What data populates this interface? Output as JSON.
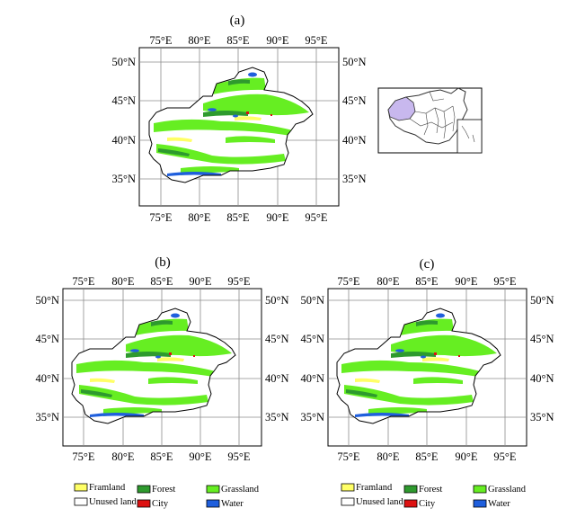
{
  "figure": {
    "panels": [
      {
        "label": "(a)",
        "lon_ticks": [
          "75°E",
          "80°E",
          "85°E",
          "90°E",
          "95°E"
        ],
        "lat_ticks": [
          "50°N",
          "45°N",
          "40°N",
          "35°N"
        ]
      },
      {
        "label": "(b)",
        "lon_ticks": [
          "75°E",
          "80°E",
          "85°E",
          "90°E",
          "95°E"
        ],
        "lat_ticks": [
          "50°N",
          "45°N",
          "40°N",
          "35°N"
        ]
      },
      {
        "label": "(c)",
        "lon_ticks": [
          "75°E",
          "80°E",
          "85°E",
          "90°E",
          "95°E"
        ],
        "lat_ticks": [
          "50°N",
          "45°N",
          "40°N",
          "35°N"
        ]
      }
    ],
    "legend": [
      {
        "label": "Framland",
        "color": "#ffff66"
      },
      {
        "label": "Forest",
        "color": "#2e9a2e"
      },
      {
        "label": "Grassland",
        "color": "#66ee22"
      },
      {
        "label": "Unused land",
        "color": "#ffffff"
      },
      {
        "label": "City",
        "color": "#dd1111"
      },
      {
        "label": "Water",
        "color": "#1f5fdd"
      }
    ]
  },
  "colors": {
    "region_outline": "#000000",
    "grid": "#8c8c8c",
    "inset_highlight": "#c8b8ee"
  }
}
